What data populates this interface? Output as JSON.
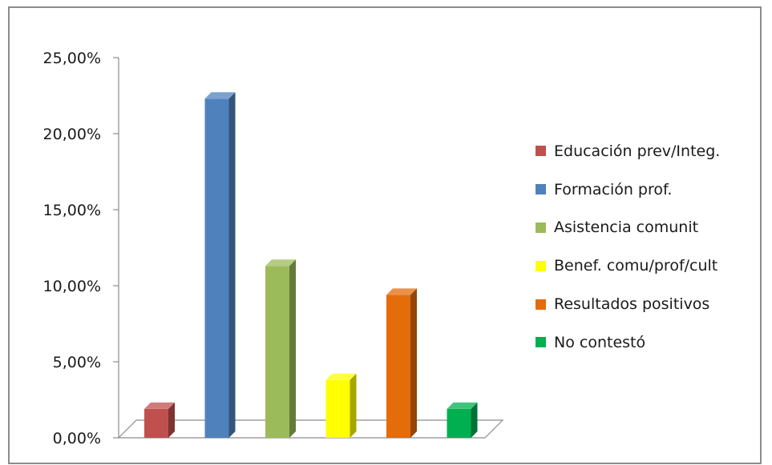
{
  "chart_data": {
    "type": "bar",
    "title": "",
    "xlabel": "",
    "ylabel": "",
    "ylim": [
      0,
      25
    ],
    "yticks": [
      "0,00%",
      "5,00%",
      "10,00%",
      "15,00%",
      "20,00%",
      "25,00%"
    ],
    "grid": false,
    "legend_position": "right",
    "series": [
      {
        "name": "Educación prev/Integ.",
        "value": 1.9,
        "color": "#c0504d"
      },
      {
        "name": "Formación prof.",
        "value": 22.3,
        "color": "#4f81bd"
      },
      {
        "name": "Asistencia comunit",
        "value": 11.3,
        "color": "#9bbb59"
      },
      {
        "name": "Benef. comu/prof/cult",
        "value": 3.8,
        "color": "#ffff00"
      },
      {
        "name": "Resultados positivos",
        "value": 9.4,
        "color": "#e46c0a"
      },
      {
        "name": "No contestó",
        "value": 1.9,
        "color": "#00b050"
      }
    ]
  }
}
